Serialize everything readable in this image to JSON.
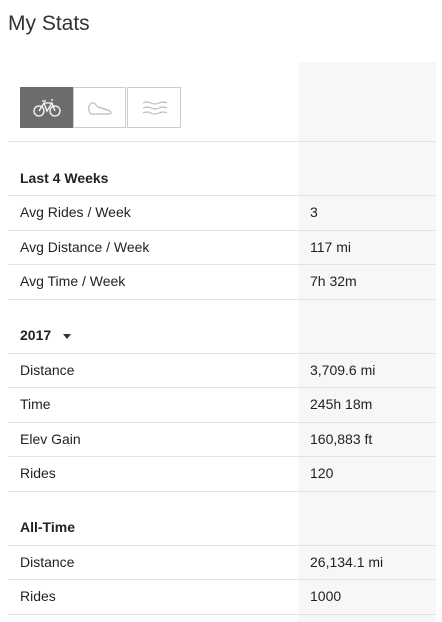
{
  "header": {
    "title": "My Stats"
  },
  "sections": [
    {
      "title": "Last 4 Weeks",
      "rows": [
        [
          "Avg Rides / Week",
          "3"
        ],
        [
          "Avg Distance / Week",
          "117 mi"
        ],
        [
          "Avg Time / Week",
          "7h 32m"
        ]
      ]
    },
    {
      "title": "2017",
      "rows": [
        [
          "Distance",
          "3,709.6 mi"
        ],
        [
          "Time",
          "245h 18m"
        ],
        [
          "Elev Gain",
          "160,883 ft"
        ],
        [
          "Rides",
          "120"
        ]
      ]
    },
    {
      "title": "All-Time",
      "rows": [
        [
          "Distance",
          "26,134.1 mi"
        ],
        [
          "Rides",
          "1000"
        ]
      ]
    }
  ]
}
